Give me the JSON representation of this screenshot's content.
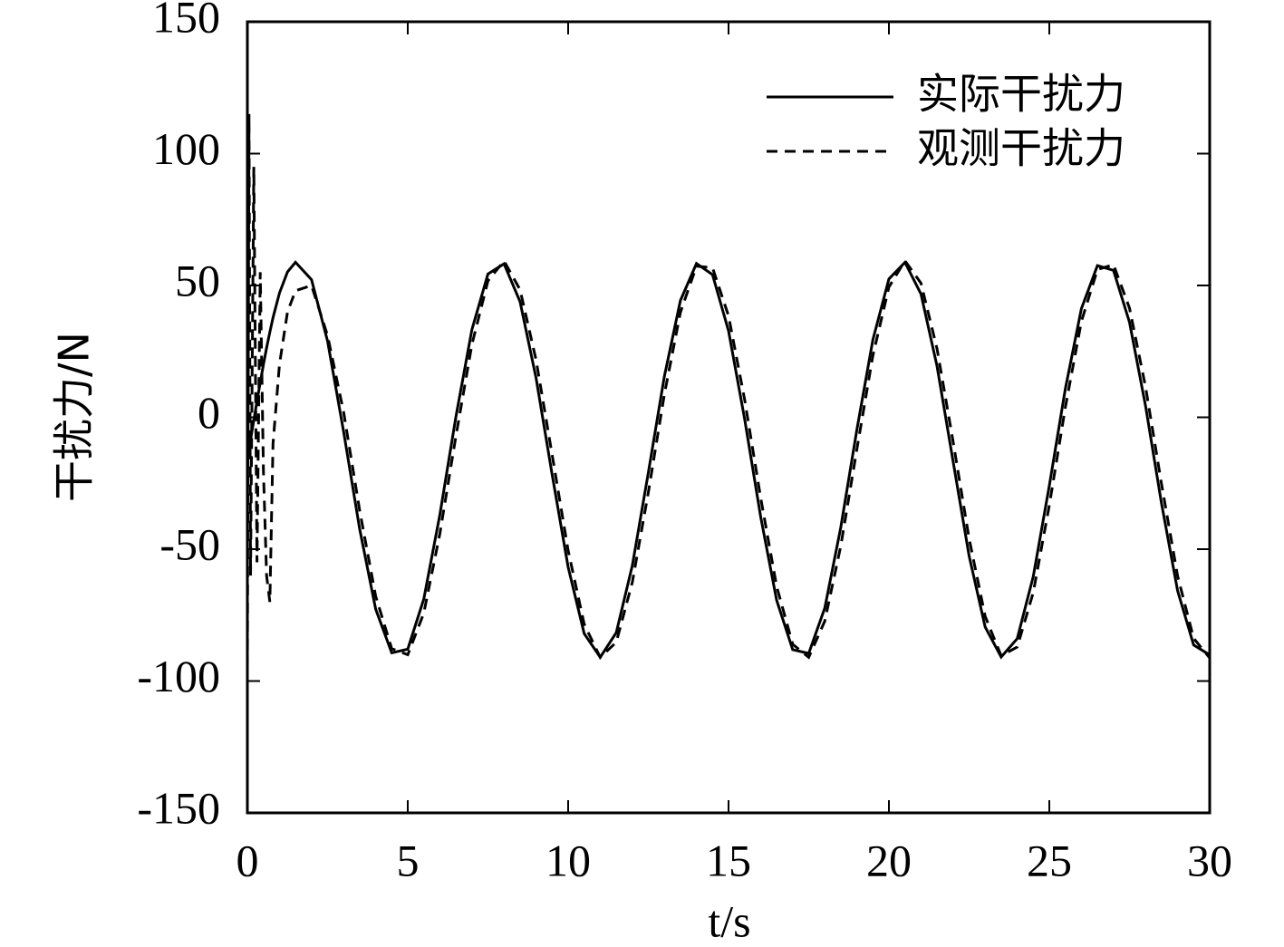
{
  "chart_data": {
    "type": "line",
    "xlabel": "t/s",
    "ylabel": "干扰力/N",
    "x": [
      0,
      0.05,
      0.1,
      0.2,
      0.3,
      0.4,
      0.5,
      0.6,
      0.7,
      0.8,
      1.0,
      1.25,
      1.5,
      2.0,
      2.5,
      3.0,
      3.5,
      4.0,
      4.5,
      5.0,
      5.5,
      6.0,
      6.5,
      7.0,
      7.5,
      8.0,
      8.5,
      9.0,
      9.5,
      10.0,
      10.5,
      11.0,
      11.5,
      12.0,
      12.5,
      13.0,
      13.5,
      14.0,
      14.5,
      15.0,
      15.5,
      16.0,
      16.5,
      17.0,
      17.5,
      18.0,
      18.5,
      19.0,
      19.5,
      20.0,
      20.5,
      21.0,
      21.5,
      22.0,
      22.5,
      23.0,
      23.5,
      24.0,
      24.5,
      25.0,
      25.5,
      26.0,
      26.5,
      27.0,
      27.5,
      28.0,
      28.5,
      29.0,
      29.5,
      30.0
    ],
    "series": [
      {
        "name": "实际干扰力",
        "color": "#000000",
        "linestyle": "solid",
        "values": [
          -16,
          -12.25,
          -8.51,
          -1.1,
          6.16,
          13.21,
          19.96,
          26.35,
          32.31,
          37.8,
          47.11,
          55.17,
          58.81,
          52.2,
          28.89,
          -5.42,
          -42.31,
          -72.76,
          -89.31,
          -87.92,
          -68.91,
          -36.96,
          0.13,
          33.27,
          54.35,
          58.2,
          43.89,
          14.91,
          -21.64,
          -56.8,
          -81.98,
          -91.0,
          -81.66,
          -56.25,
          -20.97,
          15.52,
          44.29,
          58.3,
          54.12,
          32.77,
          -0.51,
          -37.59,
          -69.39,
          -88.11,
          -89.52,
          -72.33,
          -41.69,
          -4.76,
          29.41,
          52.47,
          58.76,
          46.75,
          19.37,
          -16.67,
          -52.53,
          -79.47,
          -90.9,
          -83.92,
          -60.36,
          -25.93,
          10.83,
          41.2,
          57.52,
          55.73,
          36.04,
          4.32,
          -32.77,
          -65.77,
          -86.35,
          -90.1
        ]
      },
      {
        "name": "观测干扰力",
        "color": "#000000",
        "linestyle": "dashed",
        "values": [
          -95,
          115,
          -60,
          95,
          -55,
          55,
          -20,
          -60,
          -70,
          -10,
          20,
          40,
          48,
          50,
          31,
          2.0,
          -35.29,
          -67.85,
          -87.73,
          -90.05,
          -74.23,
          -44.16,
          -7.2,
          27.62,
          51.75,
          59.3,
          48.41,
          21.74,
          -14.16,
          -50.51,
          -78.41,
          -91.03,
          -85.28,
          -62.58,
          -28.46,
          8.72,
          39.83,
          57.27,
          56.78,
          38.47,
          6.83,
          -30.41,
          -64.13,
          -86.05,
          -91.01,
          -77.28,
          -48.74,
          -12.18,
          23.44,
          49.41,
          59.36,
          50.86,
          25.99,
          -9.17,
          -45.98,
          -75.47,
          -90.44,
          -87.1,
          -66.41,
          -33.36,
          3.83,
          36.35,
          56.01,
          57.92,
          41.4,
          11.54,
          -25.43,
          -60.16,
          -83.82,
          -91.26
        ]
      }
    ],
    "xlim": [
      0,
      30
    ],
    "xticks": [
      0,
      5,
      10,
      15,
      20,
      25,
      30
    ],
    "ylim": [
      -150,
      150
    ],
    "yticks": [
      -150,
      -100,
      -50,
      0,
      50,
      100,
      150
    ],
    "yticks_labels": null,
    "legend": "upper right"
  }
}
